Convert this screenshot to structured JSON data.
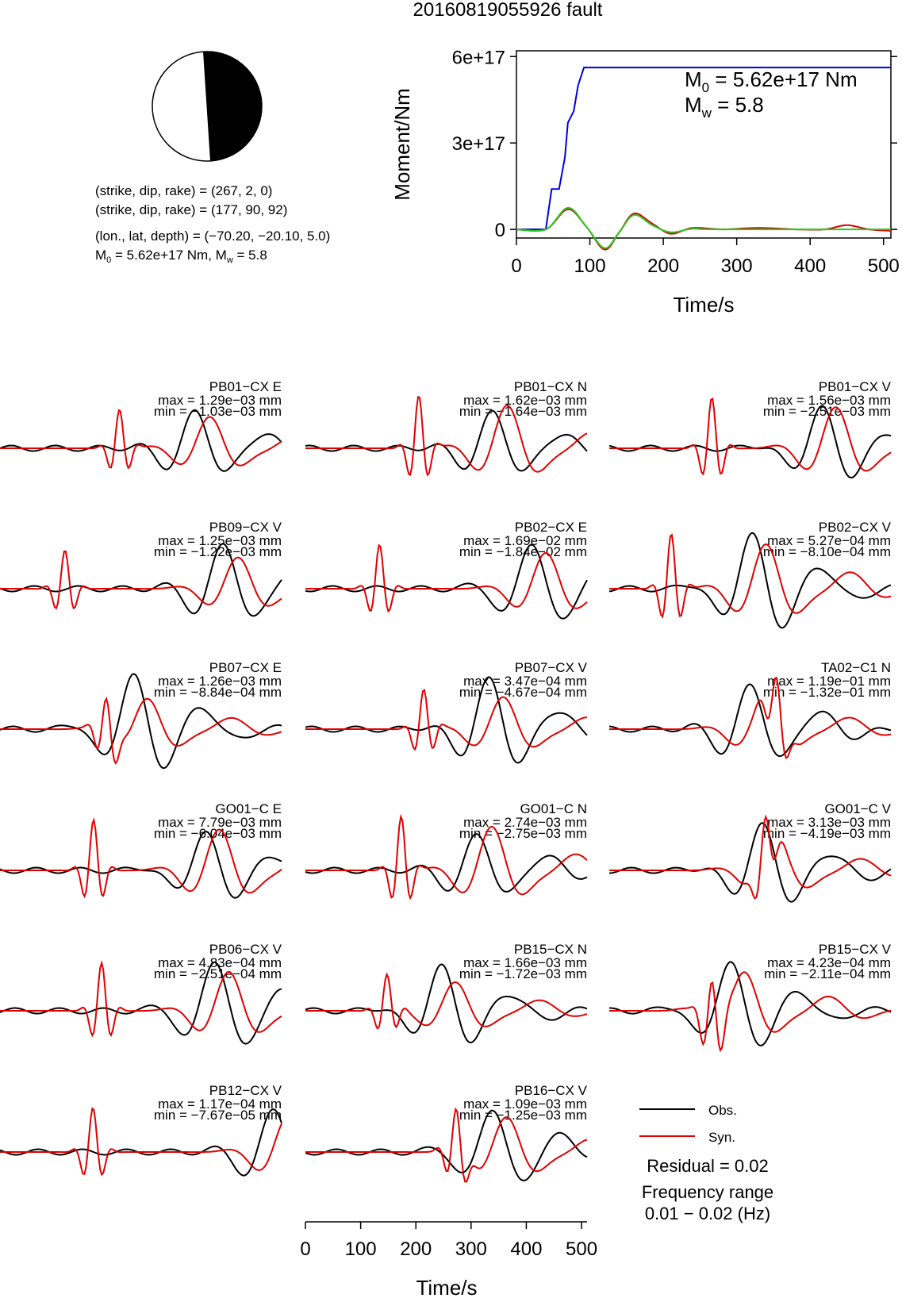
{
  "title": "20160819055926 fault",
  "focal_mechanism": {
    "planes": [
      "(strike, dip, rake) = (267, 2, 0)",
      "(strike, dip, rake) = (177, 90, 92)"
    ],
    "location": "(lon., lat, depth) = (−70.20, −20.10, 5.0)",
    "magnitude_prefix": "M",
    "magnitude_sub0": "0",
    "magnitude_mid": " = 5.62e+17 Nm, M",
    "magnitude_subw": "w",
    "magnitude_end": " = 5.8"
  },
  "moment_plot": {
    "ylabel": "Moment/Nm",
    "xlabel": "Time/s",
    "m0_text": {
      "sym": "M",
      "sub": "0",
      "val": " = 5.62e+17 Nm"
    },
    "mw_text": {
      "sym": "M",
      "sub": "w",
      "val": " = 5.8"
    },
    "yticks": [
      "0",
      "3e+17",
      "6e+17"
    ],
    "xticks": [
      "0",
      "100",
      "200",
      "300",
      "400",
      "500"
    ]
  },
  "waveform_axis": {
    "xlabel": "Time/s",
    "xticks": [
      "0",
      "100",
      "200",
      "300",
      "400",
      "500"
    ]
  },
  "legend": {
    "obs": "Obs.",
    "syn": "Syn.",
    "residual": "Residual = 0.02",
    "freq_label": "Frequency range",
    "freq_value": "0.01 − 0.02 (Hz)"
  },
  "colors": {
    "observed": "#000000",
    "synthetic": "#e00000",
    "cumulative_moment": "#0000dd",
    "moment_rate_green": "#22cc22",
    "beachball_fill": "#000000"
  },
  "chart_data": [
    {
      "type": "line",
      "name": "moment",
      "xlim": [
        0,
        510
      ],
      "ylim": [
        -3e+16,
        6.2e+17
      ],
      "series": [
        {
          "x": [
            0,
            40,
            48,
            58,
            66,
            70,
            78,
            84,
            92,
            510
          ],
          "values": [
            0,
            0,
            1.4e+17,
            1.4e+17,
            2.5e+17,
            3.7e+17,
            4.1e+17,
            5e+17,
            5.62e+17,
            5.62e+17
          ],
          "color": "#0000dd"
        },
        {
          "x": [
            0,
            40,
            70,
            95,
            120,
            140,
            160,
            185,
            210,
            240,
            280,
            330,
            380,
            420,
            450,
            480,
            510
          ],
          "values": [
            0,
            0,
            7e+16,
            1e+16,
            -7e+16,
            -1e+16,
            5.5e+16,
            2e+16,
            -1.5e+16,
            5000000000000000.0,
            0.0,
            5000000000000000.0,
            0.0,
            0.0,
            1.5e+16,
            0.0,
            -5000000000000000.0
          ],
          "color": "#e00000"
        },
        {
          "x": [
            0,
            40,
            70,
            95,
            120,
            140,
            160,
            185,
            210,
            240,
            280,
            510
          ],
          "values": [
            0,
            0,
            7.5e+16,
            1e+16,
            -6.5e+16,
            -1e+16,
            5e+16,
            1.5e+16,
            -1e+16,
            2000000000000000.0,
            0,
            0
          ],
          "color": "#22cc22"
        }
      ]
    },
    {
      "type": "line",
      "name": "waveform_fits",
      "xlim": [
        0,
        510
      ],
      "traces": [
        {
          "station": "PB01−CX E",
          "max": "max = 1.29e−03 mm",
          "min": "min = −1.03e−03 mm"
        },
        {
          "station": "PB01−CX N",
          "max": "max = 1.62e−03 mm",
          "min": "min = −1.64e−03 mm"
        },
        {
          "station": "PB01−CX V",
          "max": "max = 1.56e−03 mm",
          "min": "min = −2.51e−03 mm"
        },
        {
          "station": "PB09−CX V",
          "max": "max = 1.25e−03 mm",
          "min": "min = −1.22e−03 mm"
        },
        {
          "station": "PB02−CX E",
          "max": "max = 1.69e−02 mm",
          "min": "min = −1.84e−02 mm"
        },
        {
          "station": "PB02−CX V",
          "max": "max = 5.27e−04 mm",
          "min": "min = −8.10e−04 mm"
        },
        {
          "station": "PB07−CX E",
          "max": "max = 1.26e−03 mm",
          "min": "min = −8.84e−04 mm"
        },
        {
          "station": "PB07−CX V",
          "max": "max = 3.47e−04 mm",
          "min": "min = −4.67e−04 mm"
        },
        {
          "station": "TA02−C1 N",
          "max": "max = 1.19e−01 mm",
          "min": "min = −1.32e−01 mm"
        },
        {
          "station": "GO01−C E",
          "max": "max = 7.79e−03 mm",
          "min": "min = −6.04e−03 mm"
        },
        {
          "station": "GO01−C N",
          "max": "max = 2.74e−03 mm",
          "min": "min = −2.75e−03 mm"
        },
        {
          "station": "GO01−C V",
          "max": "max = 3.13e−03 mm",
          "min": "min = −4.19e−03 mm"
        },
        {
          "station": "PB06−CX V",
          "max": "max = 4.83e−04 mm",
          "min": "min = −2.51e−04 mm"
        },
        {
          "station": "PB15−CX N",
          "max": "max = 1.66e−03 mm",
          "min": "min = −1.72e−03 mm"
        },
        {
          "station": "PB15−CX V",
          "max": "max = 4.23e−04 mm",
          "min": "min = −2.11e−04 mm"
        },
        {
          "station": "PB12−CX V",
          "max": "max = 1.17e−04 mm",
          "min": "min = −7.67e−05 mm"
        },
        {
          "station": "PB16−CX V",
          "max": "max = 1.09e−03 mm",
          "min": "min = −1.25e−03 mm"
        }
      ]
    }
  ]
}
